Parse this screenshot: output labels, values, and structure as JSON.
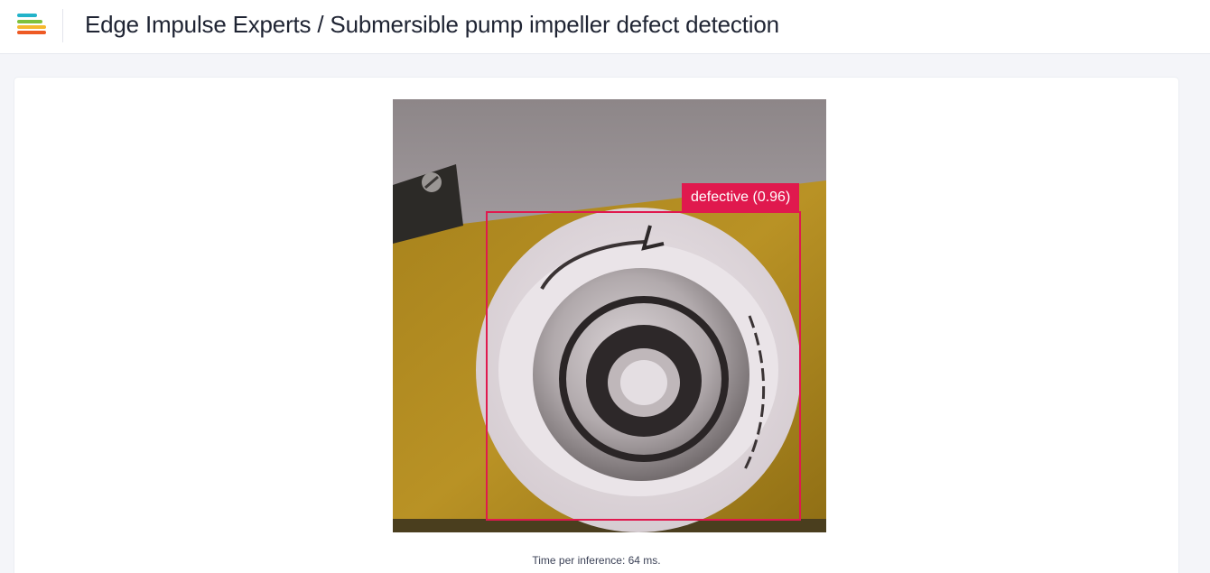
{
  "header": {
    "logo_icon": "edge-impulse-logo",
    "title": "Edge Impulse Experts / Submersible pump impeller defect detection"
  },
  "colors": {
    "accent": "#e0194e",
    "logo_bars": [
      "#22b3c9",
      "#7ec13c",
      "#f5b82e",
      "#ee5a24"
    ]
  },
  "camera": {
    "detection": {
      "label": "defective (0.96)"
    }
  },
  "footer": {
    "inference_time": "Time per inference: 64 ms."
  }
}
